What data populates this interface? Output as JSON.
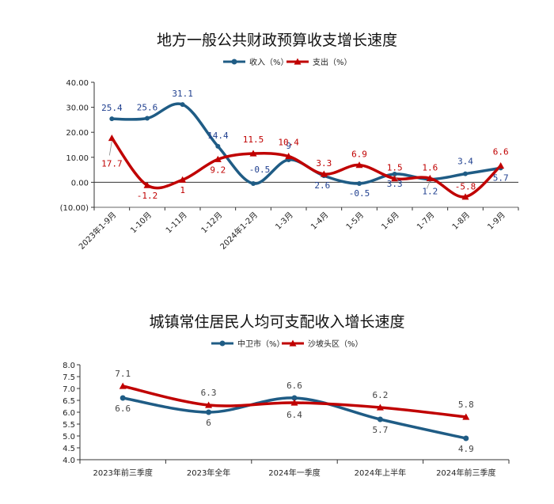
{
  "chart_data": [
    {
      "type": "line",
      "title": "地方一般公共财政预算收支增长速度",
      "categories": [
        "2023年1-9月",
        "1-10月",
        "1-11月",
        "1-12月",
        "2024年1-2月",
        "1-3月",
        "1-4月",
        "1-5月",
        "1-6月",
        "1-7月",
        "1-8月",
        "1-9月"
      ],
      "series": [
        {
          "name": "收入（%）",
          "color": "#1f5c85",
          "marker": "circle",
          "values": [
            25.4,
            25.6,
            31.1,
            14.4,
            -0.5,
            9,
            2.6,
            -0.5,
            3.3,
            1.2,
            3.4,
            5.7
          ]
        },
        {
          "name": "支出（%）",
          "color": "#c00000",
          "marker": "triangle",
          "values": [
            17.7,
            -1.2,
            1,
            9.2,
            11.5,
            10.4,
            3.3,
            6.9,
            1.5,
            1.6,
            -5.8,
            6.6
          ]
        }
      ],
      "data_labels": {
        "income": [
          "25.4",
          "25.6",
          "31.1",
          "14.4",
          "-0.5",
          "9",
          "2.6",
          "-0.5",
          "3.3",
          "1.2",
          "3.4",
          "5.7"
        ],
        "expense": [
          "17.7",
          "-1.2",
          "1",
          "9.2",
          "11.5",
          "10.4",
          "3.3",
          "6.9",
          "1.5",
          "1.6",
          "-5.8",
          "6.6"
        ]
      },
      "yticks": [
        "40.00",
        "30.00",
        "20.00",
        "10.00",
        "0.00",
        "(10.00)"
      ],
      "ytick_values": [
        40,
        30,
        20,
        10,
        0,
        -10
      ],
      "ylim": [
        -10,
        40
      ],
      "smooth": true,
      "grid": false,
      "legend_position": "top-center"
    },
    {
      "type": "line",
      "title": "城镇常住居民人均可支配收入增长速度",
      "categories": [
        "2023年前三季度",
        "2023年全年",
        "2024年一季度",
        "2024年上半年",
        "2024年前三季度"
      ],
      "series": [
        {
          "name": "中卫市（%）",
          "color": "#1f5c85",
          "marker": "circle",
          "values": [
            6.6,
            6,
            6.6,
            5.7,
            4.9
          ]
        },
        {
          "name": "沙坡头区（%）",
          "color": "#c00000",
          "marker": "triangle",
          "values": [
            7.1,
            6.3,
            6.4,
            6.2,
            5.8
          ]
        }
      ],
      "data_labels": {
        "zhongwei": [
          "6.6",
          "6",
          "6.6",
          "5.7",
          "4.9"
        ],
        "shapotou": [
          "7.1",
          "6.3",
          "6.4",
          "6.2",
          "5.8"
        ]
      },
      "yticks": [
        "8.0",
        "7.5",
        "7.0",
        "6.5",
        "6.0",
        "5.5",
        "5.0",
        "4.5",
        "4.0"
      ],
      "ytick_values": [
        8.0,
        7.5,
        7.0,
        6.5,
        6.0,
        5.5,
        5.0,
        4.5,
        4.0
      ],
      "ylim": [
        4.0,
        8.0
      ],
      "smooth": true,
      "grid": false,
      "legend_position": "top-center"
    }
  ]
}
